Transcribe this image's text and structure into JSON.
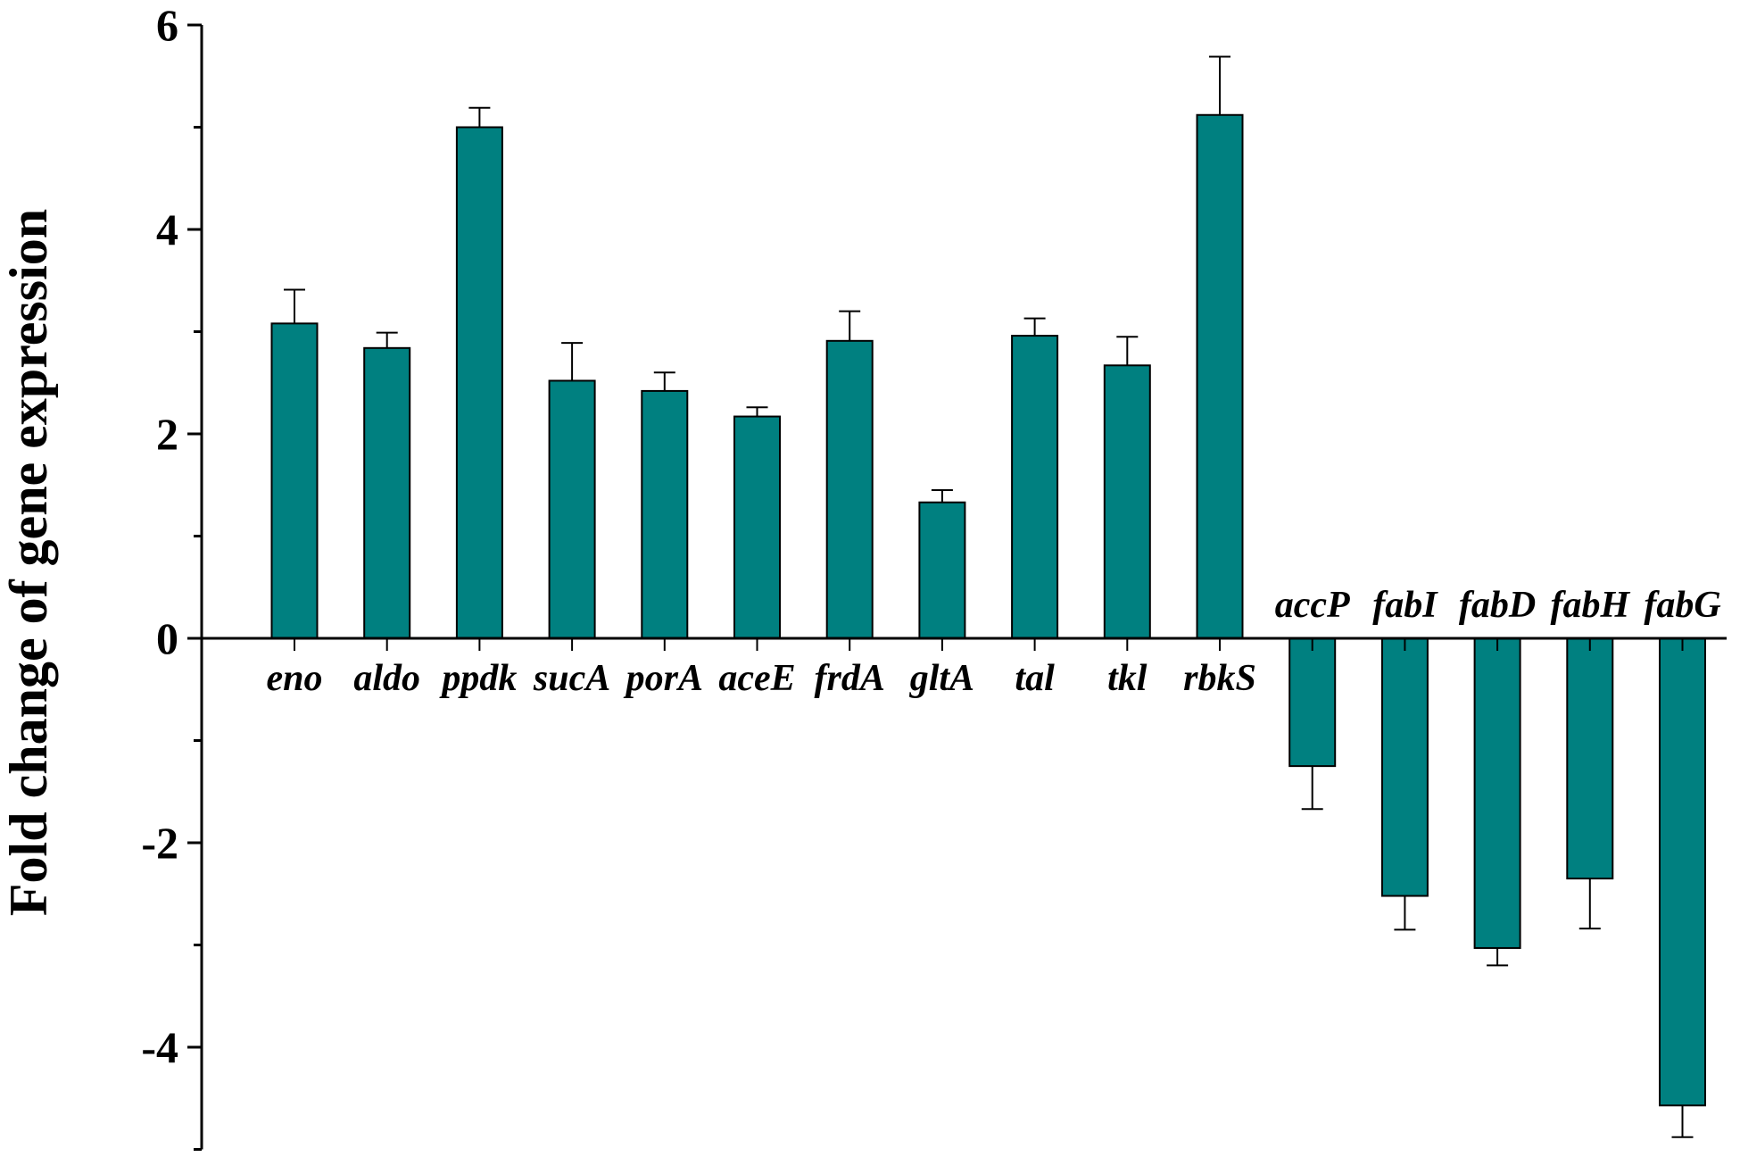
{
  "chart_data": {
    "type": "bar",
    "title": "",
    "xlabel": "",
    "ylabel": "Fold change of gene expression",
    "ylim": [
      -5,
      6
    ],
    "yticks_major": [
      6,
      4,
      2,
      0,
      -2,
      -4
    ],
    "yticks_major_labels": [
      "6",
      "4",
      "2",
      "0",
      "-2",
      "-4"
    ],
    "yticks_minor": [
      5,
      3,
      1,
      -1,
      -3,
      -5
    ],
    "grid": false,
    "legend": "none",
    "bar_color": "#008080",
    "categories": [
      "eno",
      "aldo",
      "ppdk",
      "sucA",
      "porA",
      "aceE",
      "frdA",
      "gltA",
      "tal",
      "tkl",
      "rbkS",
      "accP",
      "fabI",
      "fabD",
      "fabH",
      "fabG"
    ],
    "values": [
      3.08,
      2.84,
      5.0,
      2.52,
      2.42,
      2.17,
      2.91,
      1.33,
      2.96,
      2.67,
      5.12,
      -1.25,
      -2.52,
      -3.03,
      -2.35,
      -4.57
    ],
    "errors": [
      0.33,
      0.15,
      0.19,
      0.37,
      0.18,
      0.09,
      0.29,
      0.12,
      0.17,
      0.28,
      0.57,
      0.42,
      0.33,
      0.17,
      0.49,
      0.31
    ]
  }
}
